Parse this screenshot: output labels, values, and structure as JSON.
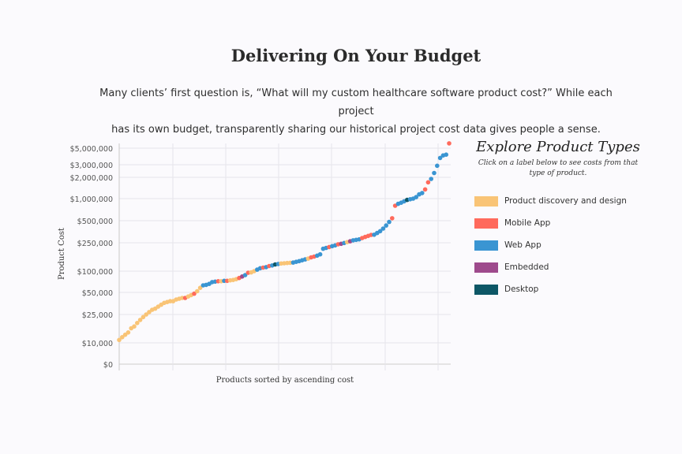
{
  "header": {
    "title": "Delivering On Your Budget",
    "intro_line1": "Many clients’ first question is, “What will my custom healthcare software product cost?” While each project",
    "intro_line2": "has its own budget, transparently sharing our historical project cost data gives people a sense."
  },
  "legend": {
    "title": "Explore Product Types",
    "subtitle": "Click on a label below to see costs from that type of product.",
    "items": [
      {
        "label": "Product discovery and design",
        "color": "#f9c476"
      },
      {
        "label": "Mobile App",
        "color": "#ff6a5c"
      },
      {
        "label": "Web App",
        "color": "#3a95d2"
      },
      {
        "label": "Embedded",
        "color": "#9e4a8c"
      },
      {
        "label": "Desktop",
        "color": "#0d5766"
      }
    ]
  },
  "chart_data": {
    "type": "scatter",
    "xlabel": "Products sorted by ascending cost",
    "ylabel": "Product Cost",
    "y_scale": "custom log-like",
    "y_ticks": [
      0,
      10000,
      25000,
      50000,
      100000,
      250000,
      500000,
      1000000,
      2000000,
      3000000,
      5000000
    ],
    "y_tick_labels": [
      "$0",
      "$10,000",
      "$25,000",
      "$50,000",
      "$100,000",
      "$250,000",
      "$500,000",
      "$1,000,000",
      "$2,000,000",
      "$3,000,000",
      "$5,000,000"
    ],
    "grid": true,
    "legend_placement": "right",
    "series_types": [
      "Product discovery and design",
      "Mobile App",
      "Web App",
      "Embedded",
      "Desktop"
    ],
    "points": [
      [
        11000,
        0
      ],
      [
        12000,
        0
      ],
      [
        13000,
        0
      ],
      [
        14000,
        0
      ],
      [
        16000,
        0
      ],
      [
        17000,
        0
      ],
      [
        19000,
        0
      ],
      [
        21000,
        0
      ],
      [
        23000,
        0
      ],
      [
        25000,
        0
      ],
      [
        27000,
        0
      ],
      [
        29000,
        0
      ],
      [
        30000,
        0
      ],
      [
        32000,
        0
      ],
      [
        34000,
        0
      ],
      [
        36000,
        0
      ],
      [
        37000,
        0
      ],
      [
        38000,
        0
      ],
      [
        38000,
        0
      ],
      [
        40000,
        0
      ],
      [
        41000,
        0
      ],
      [
        42000,
        0
      ],
      [
        42000,
        1
      ],
      [
        44000,
        0
      ],
      [
        46000,
        0
      ],
      [
        48000,
        1
      ],
      [
        52000,
        0
      ],
      [
        58000,
        0
      ],
      [
        63000,
        2
      ],
      [
        64000,
        2
      ],
      [
        66000,
        2
      ],
      [
        70000,
        2
      ],
      [
        71000,
        2
      ],
      [
        72000,
        1
      ],
      [
        72000,
        0
      ],
      [
        73000,
        2
      ],
      [
        73000,
        1
      ],
      [
        74000,
        0
      ],
      [
        75000,
        0
      ],
      [
        77000,
        0
      ],
      [
        80000,
        1
      ],
      [
        84000,
        3
      ],
      [
        88000,
        2
      ],
      [
        95000,
        1
      ],
      [
        96000,
        0
      ],
      [
        100000,
        0
      ],
      [
        105000,
        2
      ],
      [
        110000,
        2
      ],
      [
        112000,
        1
      ],
      [
        114000,
        2
      ],
      [
        118000,
        1
      ],
      [
        120000,
        2
      ],
      [
        124000,
        4
      ],
      [
        126000,
        2
      ],
      [
        128000,
        0
      ],
      [
        129000,
        0
      ],
      [
        130000,
        0
      ],
      [
        131000,
        0
      ],
      [
        132000,
        2
      ],
      [
        135000,
        2
      ],
      [
        138000,
        2
      ],
      [
        142000,
        2
      ],
      [
        146000,
        2
      ],
      [
        150000,
        0
      ],
      [
        156000,
        1
      ],
      [
        160000,
        1
      ],
      [
        165000,
        2
      ],
      [
        172000,
        2
      ],
      [
        206000,
        2
      ],
      [
        212000,
        2
      ],
      [
        218000,
        1
      ],
      [
        224000,
        2
      ],
      [
        230000,
        2
      ],
      [
        238000,
        1
      ],
      [
        242000,
        3
      ],
      [
        248000,
        2
      ],
      [
        255000,
        0
      ],
      [
        262000,
        3
      ],
      [
        270000,
        2
      ],
      [
        274000,
        2
      ],
      [
        278000,
        2
      ],
      [
        290000,
        1
      ],
      [
        300000,
        1
      ],
      [
        310000,
        1
      ],
      [
        320000,
        1
      ],
      [
        322000,
        2
      ],
      [
        340000,
        2
      ],
      [
        360000,
        2
      ],
      [
        390000,
        2
      ],
      [
        430000,
        2
      ],
      [
        480000,
        2
      ],
      [
        540000,
        1
      ],
      [
        800000,
        1
      ],
      [
        850000,
        2
      ],
      [
        880000,
        2
      ],
      [
        920000,
        2
      ],
      [
        960000,
        4
      ],
      [
        980000,
        2
      ],
      [
        1000000,
        2
      ],
      [
        1050000,
        2
      ],
      [
        1150000,
        2
      ],
      [
        1200000,
        2
      ],
      [
        1350000,
        1
      ],
      [
        1700000,
        1
      ],
      [
        1900000,
        2
      ],
      [
        2300000,
        2
      ],
      [
        2900000,
        2
      ],
      [
        3700000,
        2
      ],
      [
        4000000,
        2
      ],
      [
        4100000,
        2
      ],
      [
        5800000,
        1
      ]
    ]
  }
}
